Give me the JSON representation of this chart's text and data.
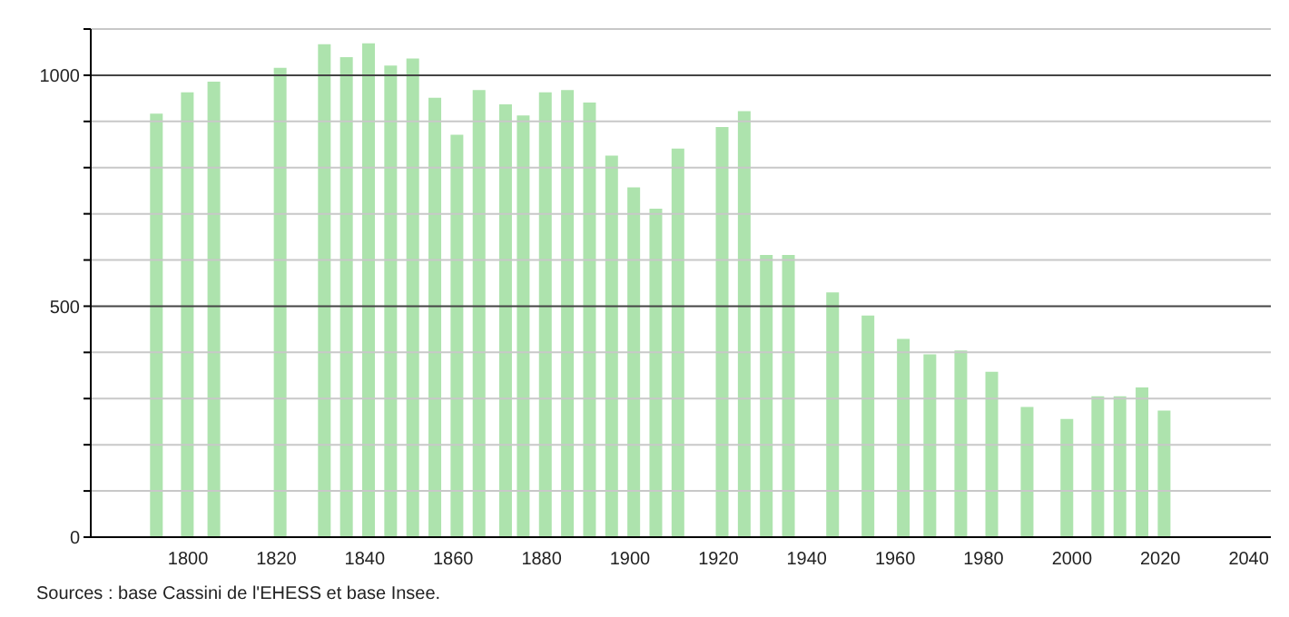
{
  "chart_data": {
    "type": "bar",
    "x": [
      1793,
      1800,
      1806,
      1821,
      1831,
      1836,
      1841,
      1846,
      1851,
      1856,
      1861,
      1866,
      1872,
      1876,
      1881,
      1886,
      1891,
      1896,
      1901,
      1906,
      1911,
      1921,
      1926,
      1931,
      1936,
      1946,
      1954,
      1962,
      1968,
      1975,
      1982,
      1990,
      1999,
      2006,
      2011,
      2016,
      2021
    ],
    "values": [
      917,
      963,
      986,
      1016,
      1067,
      1039,
      1069,
      1021,
      1036,
      951,
      871,
      968,
      937,
      913,
      963,
      968,
      941,
      826,
      757,
      711,
      841,
      888,
      922,
      611,
      611,
      530,
      480,
      429,
      396,
      404,
      358,
      282,
      256,
      305,
      305,
      324,
      274
    ],
    "color": "#ade3ad",
    "xlim": [
      1778,
      2045
    ],
    "xticks": [
      1800,
      1820,
      1840,
      1860,
      1880,
      1900,
      1920,
      1940,
      1960,
      1980,
      2000,
      2020,
      2040
    ],
    "ylim": [
      0,
      1100
    ],
    "yticks": [
      0,
      {
        "value": 100,
        "label": null
      },
      {
        "value": 200,
        "label": null
      },
      {
        "value": 300,
        "label": null
      },
      {
        "value": 400,
        "label": null
      },
      500,
      {
        "value": 600,
        "label": null
      },
      {
        "value": 700,
        "label": null
      },
      {
        "value": 800,
        "label": null
      },
      {
        "value": 900,
        "label": null
      },
      1000,
      {
        "value": 1100,
        "label": null
      }
    ],
    "grid": "y",
    "annotations": [
      "Sources : base Cassini de l'EHESS et base Insee."
    ]
  }
}
